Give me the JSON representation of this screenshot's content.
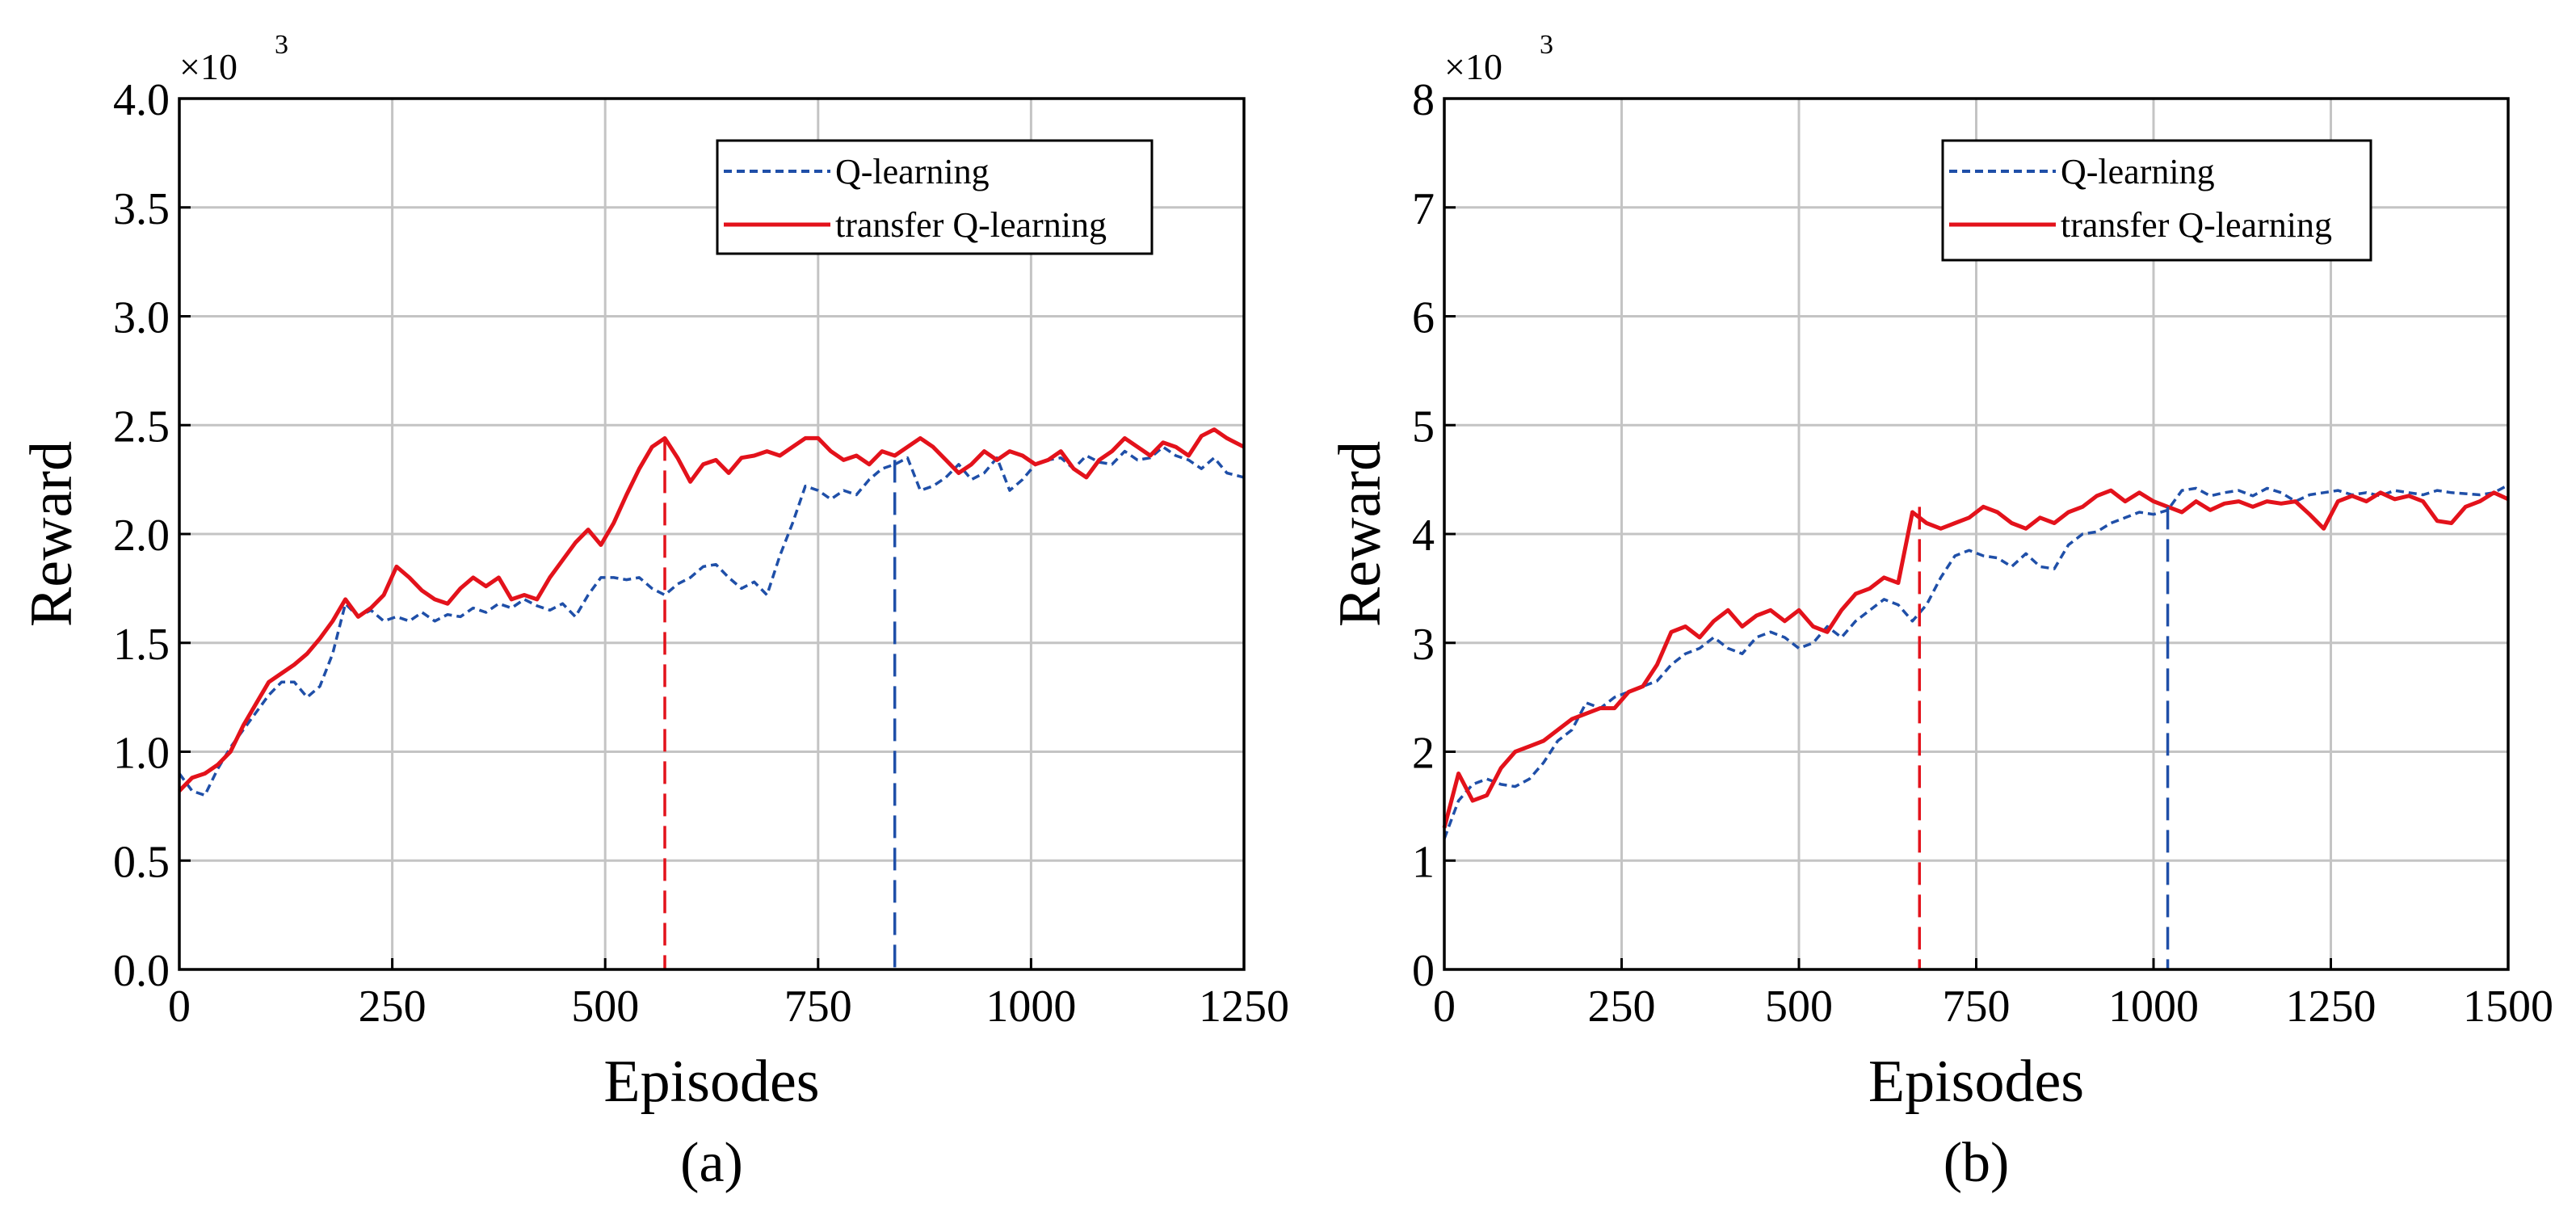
{
  "chart_data": [
    {
      "type": "line",
      "panel_label": "(a)",
      "xlabel": "Episodes",
      "ylabel": "Reward",
      "y_multiplier": "×10",
      "y_multiplier_exp": "3",
      "xlim": [
        0,
        1250
      ],
      "ylim": [
        0,
        4.0
      ],
      "xticks": [
        0,
        250,
        500,
        750,
        1000,
        1250
      ],
      "xtick_labels": [
        "0",
        "250",
        "500",
        "750",
        "1000",
        "1250"
      ],
      "yticks": [
        0,
        0.5,
        1.0,
        1.5,
        2.0,
        2.5,
        3.0,
        3.5,
        4.0
      ],
      "ytick_labels": [
        "0.0",
        "0.5",
        "1.0",
        "1.5",
        "2.0",
        "2.5",
        "3.0",
        "3.5",
        "4.0"
      ],
      "grid": true,
      "legend_position": "top-right",
      "series": [
        {
          "name": "Q-learning",
          "color": "#1f4fa8",
          "style": "dashed",
          "x": [
            0,
            15,
            30,
            45,
            60,
            75,
            90,
            105,
            120,
            135,
            150,
            165,
            180,
            195,
            210,
            225,
            240,
            255,
            270,
            285,
            300,
            315,
            330,
            345,
            360,
            375,
            390,
            405,
            420,
            435,
            450,
            465,
            480,
            495,
            510,
            525,
            540,
            555,
            570,
            585,
            600,
            615,
            630,
            645,
            660,
            675,
            690,
            705,
            720,
            735,
            750,
            765,
            780,
            795,
            810,
            825,
            840,
            855,
            870,
            885,
            900,
            915,
            930,
            945,
            960,
            975,
            990,
            1005,
            1020,
            1035,
            1050,
            1065,
            1080,
            1095,
            1110,
            1125,
            1140,
            1155,
            1170,
            1185,
            1200,
            1215,
            1230,
            1250
          ],
          "y": [
            0.9,
            0.82,
            0.8,
            0.92,
            1.02,
            1.1,
            1.18,
            1.26,
            1.32,
            1.32,
            1.25,
            1.3,
            1.45,
            1.68,
            1.62,
            1.65,
            1.6,
            1.62,
            1.6,
            1.64,
            1.6,
            1.63,
            1.62,
            1.66,
            1.64,
            1.68,
            1.66,
            1.7,
            1.67,
            1.65,
            1.68,
            1.62,
            1.72,
            1.8,
            1.8,
            1.79,
            1.8,
            1.75,
            1.72,
            1.77,
            1.8,
            1.85,
            1.86,
            1.8,
            1.75,
            1.78,
            1.72,
            1.9,
            2.05,
            2.22,
            2.2,
            2.16,
            2.2,
            2.18,
            2.25,
            2.3,
            2.32,
            2.35,
            2.2,
            2.22,
            2.26,
            2.32,
            2.25,
            2.28,
            2.35,
            2.2,
            2.25,
            2.32,
            2.34,
            2.35,
            2.3,
            2.36,
            2.33,
            2.32,
            2.38,
            2.34,
            2.35,
            2.4,
            2.36,
            2.34,
            2.3,
            2.35,
            2.28,
            2.26
          ]
        },
        {
          "name": "transfer Q-learning",
          "color": "#e3121b",
          "style": "solid",
          "x": [
            0,
            15,
            30,
            45,
            60,
            75,
            90,
            105,
            120,
            135,
            150,
            165,
            180,
            195,
            210,
            225,
            240,
            255,
            270,
            285,
            300,
            315,
            330,
            345,
            360,
            375,
            390,
            405,
            420,
            435,
            450,
            465,
            480,
            495,
            510,
            525,
            540,
            555,
            570,
            585,
            600,
            615,
            630,
            645,
            660,
            675,
            690,
            705,
            720,
            735,
            750,
            765,
            780,
            795,
            810,
            825,
            840,
            855,
            870,
            885,
            900,
            915,
            930,
            945,
            960,
            975,
            990,
            1005,
            1020,
            1035,
            1050,
            1065,
            1080,
            1095,
            1110,
            1125,
            1140,
            1155,
            1170,
            1185,
            1200,
            1215,
            1230,
            1250
          ],
          "y": [
            0.82,
            0.88,
            0.9,
            0.94,
            1.0,
            1.12,
            1.22,
            1.32,
            1.36,
            1.4,
            1.45,
            1.52,
            1.6,
            1.7,
            1.62,
            1.66,
            1.72,
            1.85,
            1.8,
            1.74,
            1.7,
            1.68,
            1.75,
            1.8,
            1.76,
            1.8,
            1.7,
            1.72,
            1.7,
            1.8,
            1.88,
            1.96,
            2.02,
            1.95,
            2.05,
            2.18,
            2.3,
            2.4,
            2.44,
            2.35,
            2.24,
            2.32,
            2.34,
            2.28,
            2.35,
            2.36,
            2.38,
            2.36,
            2.4,
            2.44,
            2.44,
            2.38,
            2.34,
            2.36,
            2.32,
            2.38,
            2.36,
            2.4,
            2.44,
            2.4,
            2.34,
            2.28,
            2.32,
            2.38,
            2.34,
            2.38,
            2.36,
            2.32,
            2.34,
            2.38,
            2.3,
            2.26,
            2.34,
            2.38,
            2.44,
            2.4,
            2.36,
            2.42,
            2.4,
            2.36,
            2.45,
            2.48,
            2.44,
            2.4
          ]
        }
      ],
      "vlines": [
        {
          "x": 570,
          "y": 2.44,
          "color": "#e3121b"
        },
        {
          "x": 840,
          "y": 2.34,
          "color": "#1f4fa8"
        }
      ]
    },
    {
      "type": "line",
      "panel_label": "(b)",
      "xlabel": "Episodes",
      "ylabel": "Reward",
      "y_multiplier": "×10",
      "y_multiplier_exp": "3",
      "xlim": [
        0,
        1500
      ],
      "ylim": [
        0,
        8
      ],
      "xticks": [
        0,
        250,
        500,
        750,
        1000,
        1250,
        1500
      ],
      "xtick_labels": [
        "0",
        "250",
        "500",
        "750",
        "1000",
        "1250",
        "1500"
      ],
      "yticks": [
        0,
        1,
        2,
        3,
        4,
        5,
        6,
        7,
        8
      ],
      "ytick_labels": [
        "0",
        "1",
        "2",
        "3",
        "4",
        "5",
        "6",
        "7",
        "8"
      ],
      "grid": true,
      "legend_position": "top-right",
      "series": [
        {
          "name": "Q-learning",
          "color": "#1f4fa8",
          "style": "dashed",
          "x": [
            0,
            20,
            40,
            60,
            80,
            100,
            120,
            140,
            160,
            180,
            200,
            220,
            240,
            260,
            280,
            300,
            320,
            340,
            360,
            380,
            400,
            420,
            440,
            460,
            480,
            500,
            520,
            540,
            560,
            580,
            600,
            620,
            640,
            660,
            680,
            700,
            720,
            740,
            760,
            780,
            800,
            820,
            840,
            860,
            880,
            900,
            920,
            940,
            960,
            980,
            1000,
            1020,
            1040,
            1060,
            1080,
            1100,
            1120,
            1140,
            1160,
            1180,
            1200,
            1220,
            1240,
            1260,
            1280,
            1300,
            1320,
            1340,
            1360,
            1380,
            1400,
            1420,
            1440,
            1460,
            1480,
            1500
          ],
          "y": [
            1.2,
            1.55,
            1.7,
            1.75,
            1.7,
            1.68,
            1.75,
            1.9,
            2.1,
            2.2,
            2.45,
            2.4,
            2.5,
            2.55,
            2.6,
            2.65,
            2.8,
            2.9,
            2.95,
            3.05,
            2.95,
            2.9,
            3.05,
            3.1,
            3.05,
            2.95,
            3.0,
            3.15,
            3.05,
            3.2,
            3.3,
            3.4,
            3.35,
            3.2,
            3.35,
            3.6,
            3.8,
            3.85,
            3.8,
            3.78,
            3.7,
            3.82,
            3.7,
            3.68,
            3.9,
            4.0,
            4.02,
            4.1,
            4.15,
            4.2,
            4.18,
            4.22,
            4.4,
            4.42,
            4.35,
            4.38,
            4.4,
            4.35,
            4.42,
            4.38,
            4.3,
            4.36,
            4.38,
            4.4,
            4.36,
            4.38,
            4.35,
            4.4,
            4.38,
            4.36,
            4.4,
            4.38,
            4.37,
            4.36,
            4.38,
            4.45
          ]
        },
        {
          "name": "transfer Q-learning",
          "color": "#e3121b",
          "style": "solid",
          "x": [
            0,
            20,
            40,
            60,
            80,
            100,
            120,
            140,
            160,
            180,
            200,
            220,
            240,
            260,
            280,
            300,
            320,
            340,
            360,
            380,
            400,
            420,
            440,
            460,
            480,
            500,
            520,
            540,
            560,
            580,
            600,
            620,
            640,
            660,
            680,
            700,
            720,
            740,
            760,
            780,
            800,
            820,
            840,
            860,
            880,
            900,
            920,
            940,
            960,
            980,
            1000,
            1020,
            1040,
            1060,
            1080,
            1100,
            1120,
            1140,
            1160,
            1180,
            1200,
            1220,
            1240,
            1260,
            1280,
            1300,
            1320,
            1340,
            1360,
            1380,
            1400,
            1420,
            1440,
            1460,
            1480,
            1500
          ],
          "y": [
            1.3,
            1.8,
            1.55,
            1.6,
            1.85,
            2.0,
            2.05,
            2.1,
            2.2,
            2.3,
            2.35,
            2.4,
            2.4,
            2.55,
            2.6,
            2.8,
            3.1,
            3.15,
            3.05,
            3.2,
            3.3,
            3.15,
            3.25,
            3.3,
            3.2,
            3.3,
            3.15,
            3.1,
            3.3,
            3.45,
            3.5,
            3.6,
            3.55,
            4.2,
            4.1,
            4.05,
            4.1,
            4.15,
            4.25,
            4.2,
            4.1,
            4.05,
            4.15,
            4.1,
            4.2,
            4.25,
            4.35,
            4.4,
            4.3,
            4.38,
            4.3,
            4.25,
            4.2,
            4.3,
            4.22,
            4.28,
            4.3,
            4.25,
            4.3,
            4.28,
            4.3,
            4.18,
            4.05,
            4.3,
            4.35,
            4.3,
            4.38,
            4.32,
            4.35,
            4.3,
            4.12,
            4.1,
            4.25,
            4.3,
            4.38,
            4.32
          ]
        }
      ],
      "vlines": [
        {
          "x": 670,
          "y": 4.25,
          "color": "#e3121b"
        },
        {
          "x": 1020,
          "y": 4.25,
          "color": "#1f4fa8"
        }
      ]
    }
  ]
}
